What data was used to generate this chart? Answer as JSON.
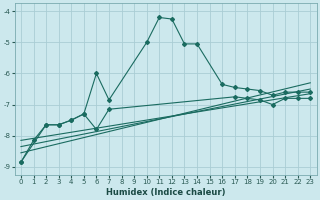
{
  "xlabel": "Humidex (Indice chaleur)",
  "bg_color": "#cce8ed",
  "grid_color": "#aacdd4",
  "line_color": "#1a6b60",
  "xlim": [
    -0.5,
    23.5
  ],
  "ylim": [
    -9.25,
    -3.75
  ],
  "yticks": [
    -9,
    -8,
    -7,
    -6,
    -5,
    -4
  ],
  "xticks": [
    0,
    1,
    2,
    3,
    4,
    5,
    6,
    7,
    8,
    9,
    10,
    11,
    12,
    13,
    14,
    15,
    16,
    17,
    18,
    19,
    20,
    21,
    22,
    23
  ],
  "line_peak_x": [
    0,
    1,
    2,
    3,
    4,
    5,
    6,
    7,
    10,
    11,
    12,
    13,
    14,
    16,
    17,
    18,
    19,
    20,
    21,
    22,
    23
  ],
  "line_peak_y": [
    -8.85,
    -8.15,
    -7.65,
    -7.65,
    -7.5,
    -7.3,
    -6.0,
    -6.85,
    -5.0,
    -4.2,
    -4.25,
    -5.05,
    -5.05,
    -6.35,
    -6.45,
    -6.5,
    -6.55,
    -6.7,
    -6.6,
    -6.6,
    -6.6
  ],
  "line_lower_x": [
    0,
    2,
    3,
    4,
    5,
    6,
    7,
    17,
    18,
    19,
    20,
    21,
    22,
    23
  ],
  "line_lower_y": [
    -8.85,
    -7.65,
    -7.65,
    -7.5,
    -7.3,
    -7.8,
    -7.15,
    -6.75,
    -6.8,
    -6.85,
    -7.0,
    -6.8,
    -6.8,
    -6.8
  ],
  "trend_lines": [
    {
      "x0": 0,
      "y0": -8.55,
      "x1": 23,
      "y1": -6.3
    },
    {
      "x0": 0,
      "y0": -8.35,
      "x1": 23,
      "y1": -6.5
    },
    {
      "x0": 0,
      "y0": -8.15,
      "x1": 23,
      "y1": -6.65
    }
  ]
}
